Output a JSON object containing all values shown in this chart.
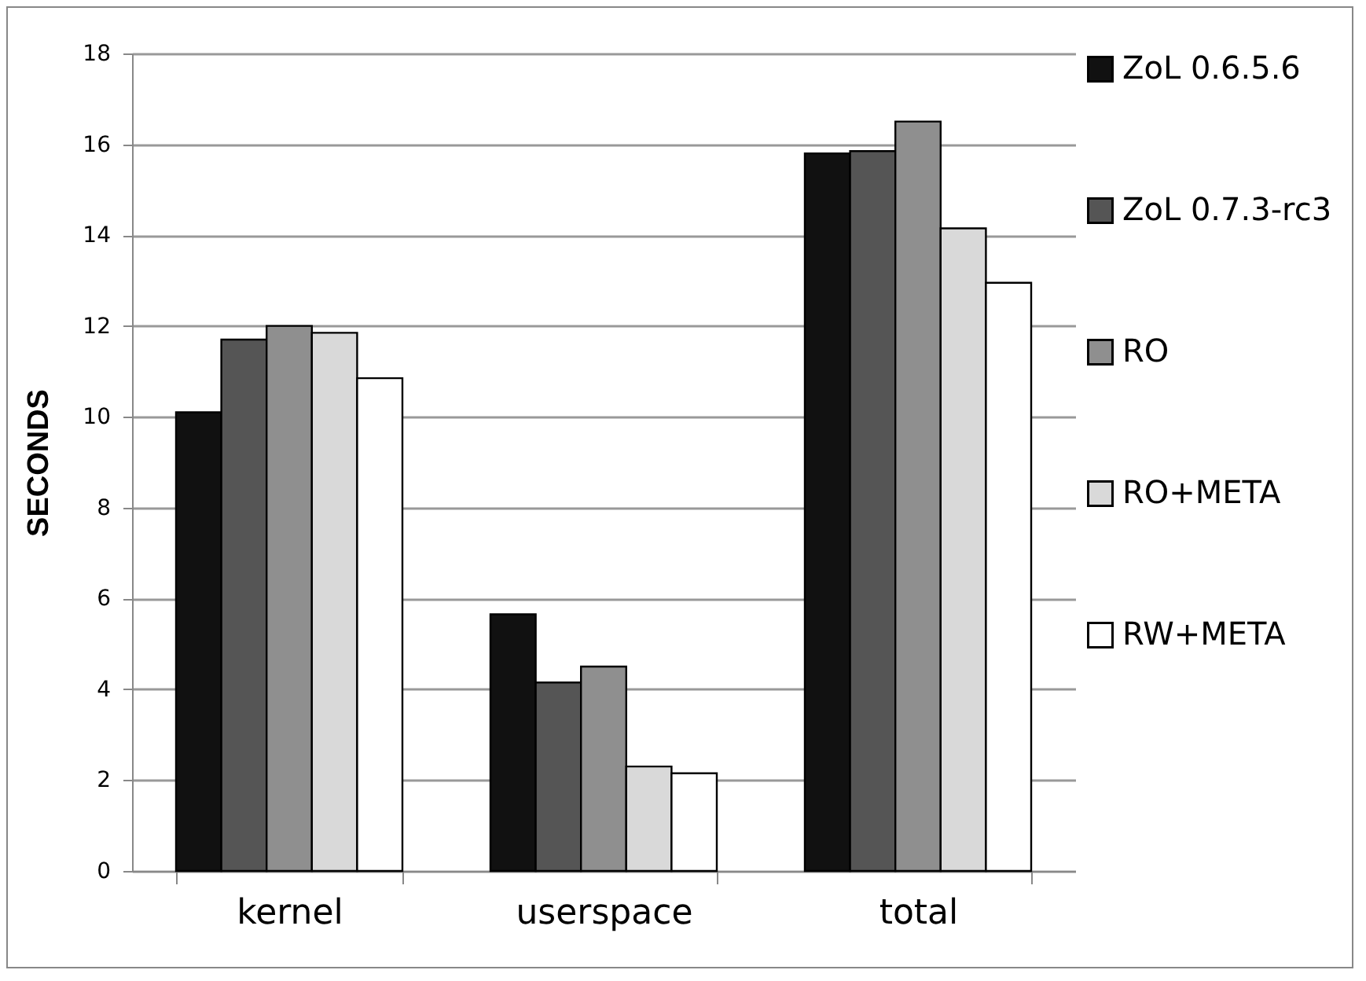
{
  "chart_data": {
    "type": "bar",
    "ylabel": "SECONDS",
    "categories": [
      "kernel",
      "userspace",
      "total"
    ],
    "series": [
      {
        "name": "ZoL 0.6.5.6",
        "color": "#111111",
        "values": [
          10.1,
          5.65,
          15.8
        ]
      },
      {
        "name": "ZoL 0.7.3-rc3",
        "color": "#555555",
        "values": [
          11.7,
          4.15,
          15.85
        ]
      },
      {
        "name": "RO",
        "color": "#8f8f8f",
        "values": [
          12.0,
          4.5,
          16.5
        ]
      },
      {
        "name": "RO+META",
        "color": "#d9d9d9",
        "values": [
          11.85,
          2.3,
          14.15
        ]
      },
      {
        "name": "RW+META",
        "color": "#ffffff",
        "values": [
          10.85,
          2.15,
          12.95
        ]
      }
    ],
    "ylim": [
      0,
      18
    ],
    "yticks": [
      0,
      2,
      4,
      6,
      8,
      10,
      12,
      14,
      16,
      18
    ],
    "grid": "y",
    "legend": "right"
  }
}
